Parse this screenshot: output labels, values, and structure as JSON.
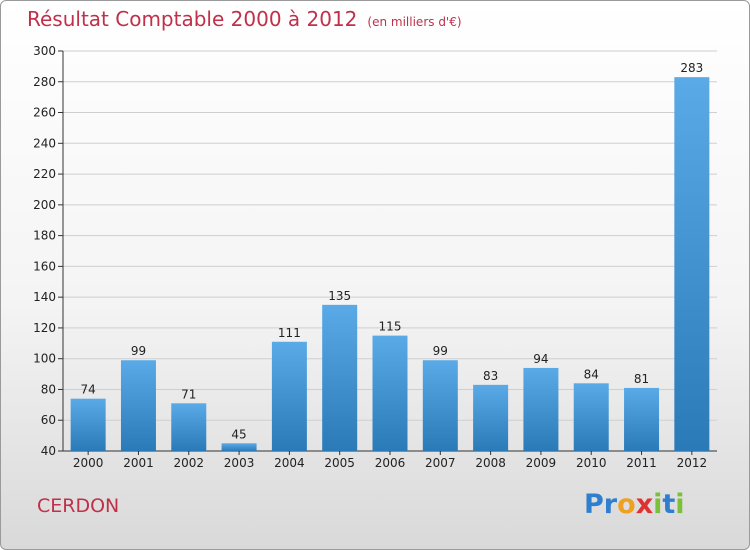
{
  "header": {
    "title": "Résultat Comptable 2000 à 2012",
    "unit": "(en milliers d'€)"
  },
  "footer": {
    "commune": "CERDON",
    "logo_letters": [
      {
        "ch": "P",
        "color": "#2f7fd1"
      },
      {
        "ch": "r",
        "color": "#2f7fd1"
      },
      {
        "ch": "o",
        "color": "#f0a020"
      },
      {
        "ch": "x",
        "color": "#e03030"
      },
      {
        "ch": "i",
        "color": "#7cc03a"
      },
      {
        "ch": "t",
        "color": "#2f7fd1"
      },
      {
        "ch": "i",
        "color": "#7cc03a"
      }
    ]
  },
  "colors": {
    "title": "#c0304a",
    "bar_top": "#5aaae8",
    "bar_bottom": "#2a7ab8",
    "grid": "#cfcfcf"
  },
  "chart_data": {
    "type": "bar",
    "title": "Résultat Comptable 2000 à 2012",
    "xlabel": "",
    "ylabel": "",
    "ylim": [
      40,
      300
    ],
    "yticks": [
      40,
      60,
      80,
      100,
      120,
      140,
      160,
      180,
      200,
      220,
      240,
      260,
      280,
      300
    ],
    "categories": [
      "2000",
      "2001",
      "2002",
      "2003",
      "2004",
      "2005",
      "2006",
      "2007",
      "2008",
      "2009",
      "2010",
      "2011",
      "2012"
    ],
    "values": [
      74,
      99,
      71,
      45,
      111,
      135,
      115,
      99,
      83,
      94,
      84,
      81,
      283
    ],
    "grid": true,
    "legend": "none"
  }
}
